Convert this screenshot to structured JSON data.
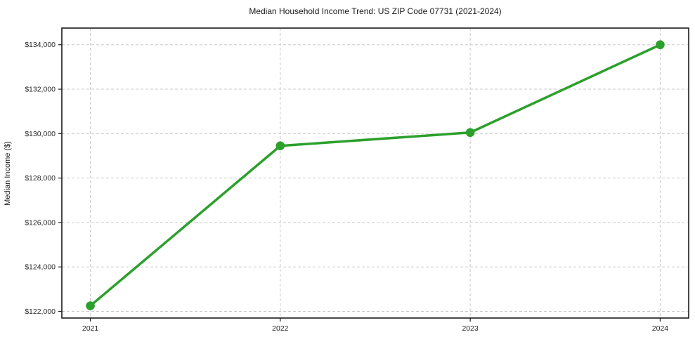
{
  "chart_data": {
    "type": "line",
    "title": "Median Household Income Trend: US ZIP Code 07731 (2021-2024)",
    "xlabel": "",
    "ylabel": "Median Income ($)",
    "x": [
      2021,
      2022,
      2023,
      2024
    ],
    "x_tick_labels": [
      "2021",
      "2022",
      "2023",
      "2024"
    ],
    "series": [
      {
        "name": "Median Income ($)",
        "values": [
          122250,
          129450,
          130050,
          134000
        ]
      }
    ],
    "y_ticks": [
      122000,
      124000,
      126000,
      128000,
      130000,
      132000,
      134000
    ],
    "y_tick_labels": [
      "$122,000",
      "$124,000",
      "$126,000",
      "$128,000",
      "$130,000",
      "$132,000",
      "$134,000"
    ],
    "xlim": [
      2020.85,
      2024.15
    ],
    "ylim": [
      121700,
      134750
    ],
    "grid": true,
    "grid_style": "dashed",
    "legend": false,
    "line_color": "#2ca02c",
    "marker": "circle",
    "marker_radius": 6.3,
    "background": "#ffffff"
  }
}
